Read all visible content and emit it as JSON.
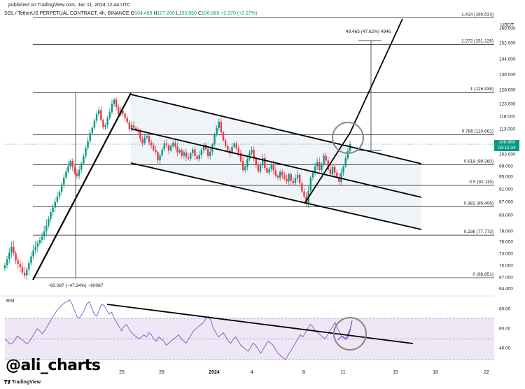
{
  "header": {
    "published": "published on TradingView.com, Jan 11, 2024 12:44 UTC",
    "symbol": "SOL / TetherUS PERPETUAL CONTRACT, 4h, BINANCE",
    "open_label": "O",
    "open": "104.499",
    "high_label": "H",
    "high": "107.200",
    "low_label": "L",
    "low": "103.850",
    "close_label": "C",
    "close": "106.869",
    "change": "+2.370 (+2.27%)",
    "currency": "USDT"
  },
  "price_badge": {
    "price": "106.869",
    "timer": "03:15:34"
  },
  "rsi_label": "RSI",
  "watermark": "@ali_charts",
  "footer": {
    "brand_icon": "tradingview-logo-icon",
    "brand": "TradingView"
  },
  "colors": {
    "up": "#089981",
    "down": "#f23645",
    "rsi": "#7e57c2",
    "rsi_band": "#ede7f6",
    "channel_fill": "#f0f3f8"
  },
  "chart_data": {
    "type": "candlestick",
    "price_axis_ticks": [
      160.0,
      152.0,
      144.0,
      136.0,
      128.0,
      123.0,
      118.0,
      113.0,
      103.0,
      99.0,
      95.0,
      91.0,
      87.0,
      83.0,
      79.0,
      76.0,
      73.0,
      70.0,
      67.0,
      64.4
    ],
    "price_axis_labels": [
      "160.000",
      "152.000",
      "144.000",
      "136.000",
      "128.000",
      "123.000",
      "118.000",
      "113.000",
      "103.000",
      "99.000",
      "95.000",
      "91.000",
      "87.000",
      "83.000",
      "79.000",
      "76.000",
      "73.000",
      "70.000",
      "67.000",
      "64.400"
    ],
    "time_axis_labels": [
      "25",
      "28",
      "2024",
      "4",
      "8",
      "11",
      "15",
      "18",
      "22"
    ],
    "fib_levels": [
      {
        "label": "1.414 (165.533)",
        "value": 165.533
      },
      {
        "label": "1.272 (151.126)",
        "value": 151.126
      },
      {
        "label": "1 (126.938)",
        "value": 126.938
      },
      {
        "label": "0.786 (110.661)",
        "value": 110.661
      },
      {
        "label": "0.618 (99.360)",
        "value": 99.36
      },
      {
        "label": "0.5 (92.119)",
        "value": 92.119
      },
      {
        "label": "0.382 (85.406)",
        "value": 85.406
      },
      {
        "label": "0.236 (77.773)",
        "value": 77.773
      },
      {
        "label": "0 (66.851)",
        "value": 66.851
      }
    ],
    "annotations": {
      "target_move": "49.465 (47.62%) 4946",
      "prior_move": "−60.087 (−47.34%) −60087"
    },
    "rsi_ticks": [
      80.0,
      60.0,
      40.0
    ],
    "rsi_tick_labels": [
      "80.00",
      "60.00",
      "40.00"
    ],
    "rsi_band": [
      30,
      70
    ],
    "last_price": 106.869,
    "grid": false,
    "candles_close_path": [
      70,
      71.5,
      73.2,
      74.6,
      73,
      71.2,
      70.3,
      69.5,
      68.1,
      67.4,
      68.9,
      70.5,
      72.2,
      73.8,
      74.6,
      75.6,
      76.4,
      77.4,
      78.9,
      80.3,
      82,
      83.8,
      85.2,
      86.9,
      88.6,
      90.1,
      92.4,
      94.6,
      96.8,
      98.9,
      100.6,
      98.4,
      96.2,
      95.1,
      97.5,
      99.8,
      102.2,
      105.3,
      108.1,
      111.3,
      113.4,
      116.2,
      118.8,
      120.4,
      116.4,
      113.6,
      114.4,
      117.2,
      119.6,
      122.8,
      124.4,
      121.6,
      118.8,
      120.2,
      119,
      117.3,
      115.6,
      112.8,
      114.4,
      113.4,
      112.6,
      111.8,
      108.8,
      107.2,
      109.6,
      110.2,
      107.5,
      106.4,
      104.6,
      103.8,
      100.8,
      102.5,
      104.8,
      107.2,
      106.5,
      104.3,
      106.2,
      107.4,
      105.9,
      103.6,
      104.5,
      102.4,
      103.6,
      101.9,
      101.4,
      103.3,
      104.8,
      102.3,
      101.3,
      102.6,
      104.6,
      106.6,
      104.8,
      102.3,
      103.9,
      106.8,
      110.6,
      113.3,
      115.8,
      111.6,
      108.4,
      106.2,
      104.4,
      103.2,
      105.8,
      107.2,
      105.3,
      103.4,
      100.6,
      97.4,
      98.6,
      101.2,
      103.4,
      104.6,
      101.4,
      99.4,
      96.8,
      99.2,
      101.6,
      98.2,
      96.4,
      97.8,
      99.4,
      97.2,
      95.2,
      94.6,
      96.7,
      95.4,
      94.2,
      93.4,
      95.8,
      93.6,
      92.8,
      94.4,
      95.6,
      92.8,
      90.2,
      88.6,
      86.4,
      90.4,
      94.6,
      96.4,
      98.8,
      100.2,
      97.4,
      99.6,
      102.4,
      100.8,
      97.6,
      95.8,
      98.6,
      96.4,
      94.8,
      93.2,
      96.4,
      98.8,
      101.6,
      104.2,
      106.869
    ],
    "rsi_values": [
      50,
      48,
      45,
      46,
      49,
      53,
      51,
      49,
      47,
      45,
      48,
      52,
      56,
      60,
      58,
      55,
      58,
      62,
      66,
      70,
      74,
      78,
      80,
      83,
      85,
      86,
      88,
      84,
      78,
      72,
      70,
      74,
      78,
      84,
      86,
      80,
      74,
      72,
      78,
      84,
      82,
      78,
      74,
      76,
      70,
      66,
      62,
      58,
      62,
      64,
      60,
      56,
      54,
      52,
      50,
      52,
      54,
      52,
      56,
      54,
      50,
      48,
      52,
      50,
      48,
      44,
      46,
      48,
      50,
      52,
      54,
      50,
      48,
      46,
      50,
      54,
      58,
      60,
      62,
      64,
      66,
      70,
      72,
      68,
      60,
      56,
      52,
      54,
      56,
      52,
      48,
      46,
      50,
      52,
      48,
      44,
      42,
      40,
      38,
      42,
      46,
      44,
      40,
      36,
      40,
      44,
      48,
      46,
      44,
      40,
      36,
      34,
      32,
      30,
      34,
      38,
      42,
      46,
      50,
      54,
      52,
      56,
      60,
      64,
      62,
      58,
      56,
      54,
      52,
      50,
      54,
      58,
      62,
      66,
      60,
      56,
      52,
      50,
      54,
      60
    ]
  }
}
